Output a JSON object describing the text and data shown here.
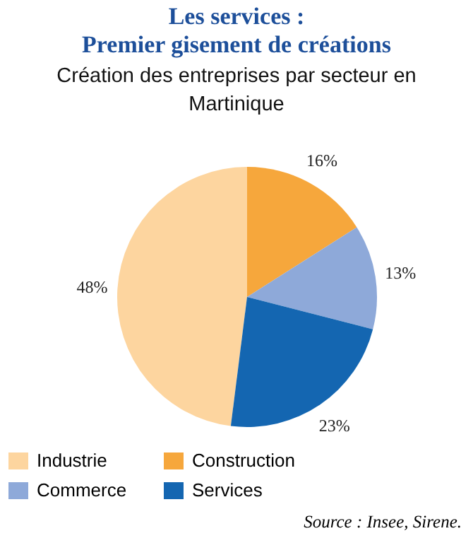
{
  "chart_data": {
    "type": "pie",
    "title": "Les services :\nPremier gisement de créations",
    "subtitle": "Création des entreprises par secteur en Martinique",
    "categories": [
      "Industrie",
      "Construction",
      "Commerce",
      "Services"
    ],
    "values": [
      48,
      16,
      13,
      23
    ],
    "colors": [
      "#fdd59f",
      "#f6a73c",
      "#8ea9d9",
      "#1466b1"
    ],
    "value_labels": [
      "48%",
      "16%",
      "13%",
      "23%"
    ],
    "legend": "bottom",
    "annotations": [
      "Source : Insee, Sirene."
    ]
  }
}
